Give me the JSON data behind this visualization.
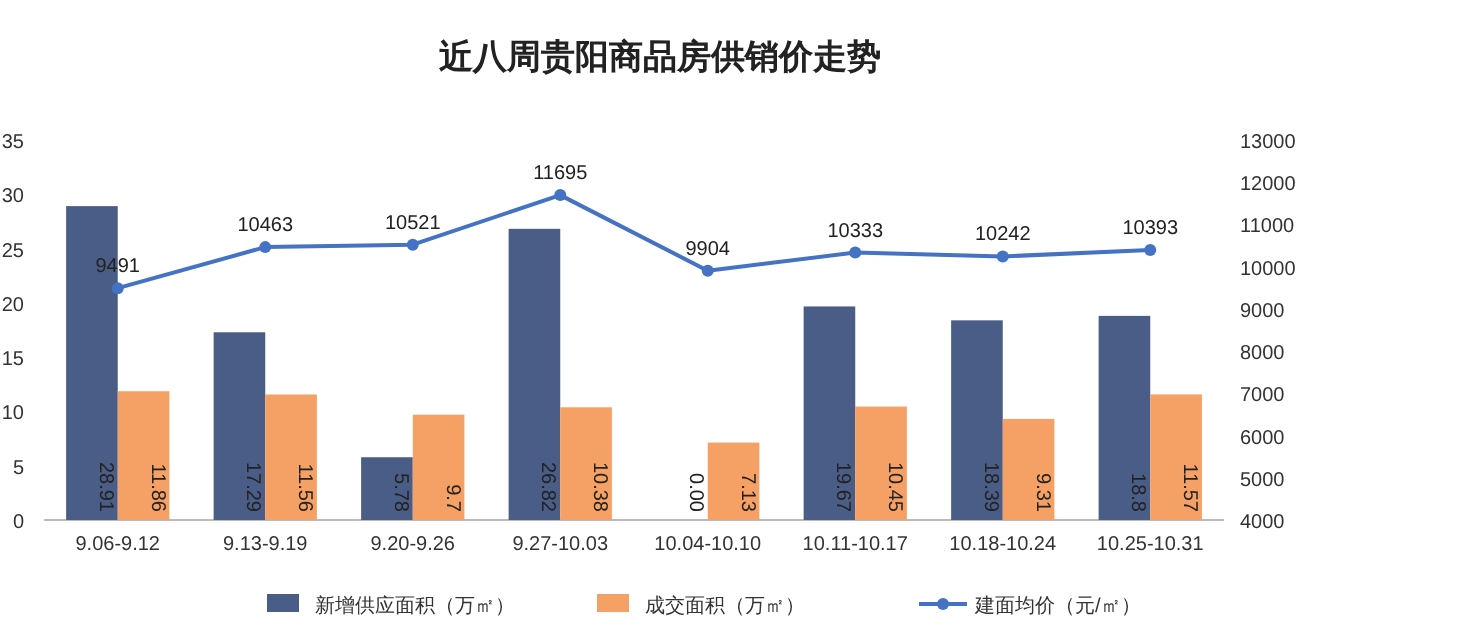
{
  "chart_data": {
    "type": "bar",
    "title": "近八周贵阳商品房供销价走势",
    "categories": [
      "9.06-9.12",
      "9.13-9.19",
      "9.20-9.26",
      "9.27-10.03",
      "10.04-10.10",
      "10.11-10.17",
      "10.18-10.24",
      "10.25-10.31"
    ],
    "series": [
      {
        "name": "新增供应面积（万㎡）",
        "color": "#4a5d86",
        "values": [
          28.91,
          17.29,
          5.78,
          26.82,
          0,
          19.67,
          18.39,
          18.8
        ],
        "value_labels": [
          "28.91",
          "17.29",
          "5.78",
          "26.82",
          "0.00",
          "19.67",
          "18.39",
          "18.8"
        ]
      },
      {
        "name": "成交面积（万㎡）",
        "color": "#f5a064",
        "values": [
          11.86,
          11.56,
          9.7,
          10.38,
          7.13,
          10.45,
          9.31,
          11.57
        ],
        "value_labels": [
          "11.86",
          "11.56",
          "9.7",
          "10.38",
          "7.13",
          "10.45",
          "9.31",
          "11.57"
        ]
      },
      {
        "name": "建面均价（元/㎡）",
        "type": "line",
        "axis": "y2",
        "color": "#4472c4",
        "marker": "circle",
        "values": [
          9491,
          10463,
          10521,
          11695,
          9904,
          10333,
          10242,
          10393
        ],
        "value_labels": [
          "9491",
          "10463",
          "10521",
          "11695",
          "9904",
          "10333",
          "10242",
          "10393"
        ]
      }
    ],
    "ylim": [
      0,
      35
    ],
    "yticks": [
      0,
      5,
      10,
      15,
      20,
      25,
      30,
      35
    ],
    "y2lim": [
      4000,
      13000
    ],
    "y2ticks": [
      4000,
      5000,
      6000,
      7000,
      8000,
      9000,
      10000,
      11000,
      12000,
      13000
    ],
    "grid": false,
    "legend": "bottom"
  }
}
